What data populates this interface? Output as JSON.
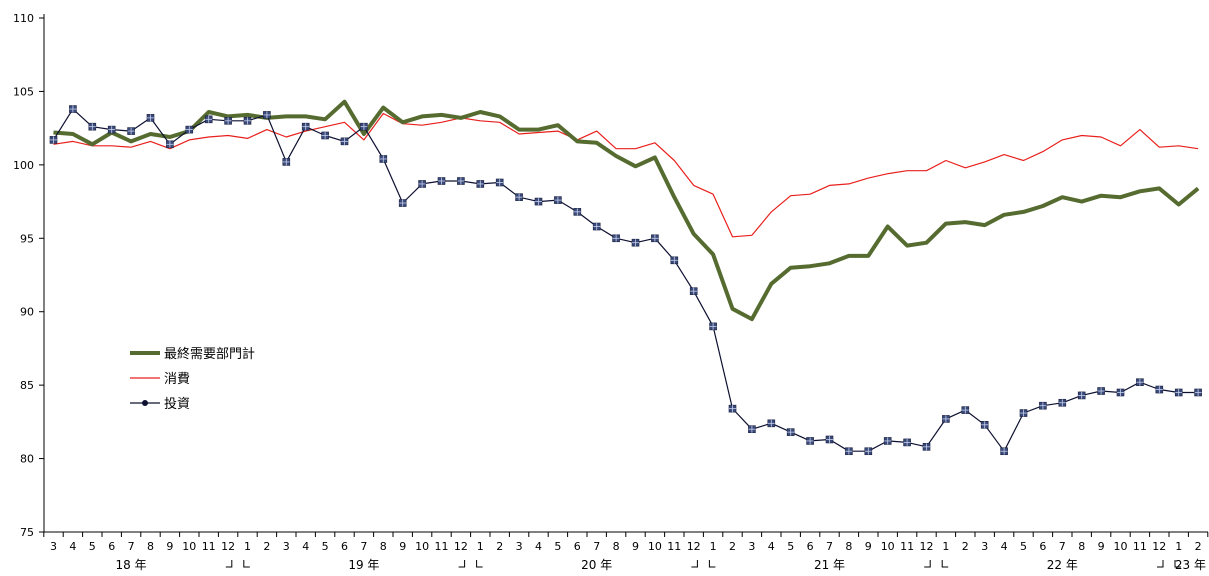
{
  "chart_data": {
    "type": "line",
    "title": "",
    "xlabel": "",
    "ylabel": "",
    "ylim": [
      75,
      110
    ],
    "yticks": [
      75,
      80,
      85,
      90,
      95,
      100,
      105,
      110
    ],
    "grid": false,
    "legend_position": "left",
    "categories": [
      "3",
      "4",
      "5",
      "6",
      "7",
      "8",
      "9",
      "10",
      "11",
      "12",
      "1",
      "2",
      "3",
      "4",
      "5",
      "6",
      "7",
      "8",
      "9",
      "10",
      "11",
      "12",
      "1",
      "2",
      "3",
      "4",
      "5",
      "6",
      "7",
      "8",
      "9",
      "10",
      "11",
      "12",
      "1",
      "2",
      "3",
      "4",
      "5",
      "6",
      "7",
      "8",
      "9",
      "10",
      "11",
      "12",
      "1",
      "2",
      "3",
      "4",
      "5",
      "6",
      "7",
      "8",
      "9",
      "10",
      "11",
      "12",
      "1",
      "2"
    ],
    "year_labels": [
      {
        "text": "18 年",
        "index": 4
      },
      {
        "text": "19 年",
        "index": 16
      },
      {
        "text": "20 年",
        "index": 28
      },
      {
        "text": "21 年",
        "index": 40
      },
      {
        "text": "22 年",
        "index": 52
      },
      {
        "text": "23 年",
        "index": 59
      }
    ],
    "year_bracket_indices": [
      9.5,
      21.5,
      33.5,
      45.5,
      57.5
    ],
    "series": [
      {
        "name": "最終需要部門計",
        "color": "#556b2f",
        "values": [
          102.2,
          102.1,
          101.4,
          102.2,
          101.6,
          102.1,
          101.9,
          102.3,
          103.6,
          103.3,
          103.4,
          103.2,
          103.3,
          103.3,
          103.1,
          104.3,
          102.1,
          103.9,
          102.9,
          103.3,
          103.4,
          103.2,
          103.6,
          103.3,
          102.4,
          102.4,
          102.7,
          101.6,
          101.5,
          100.6,
          99.9,
          100.5,
          97.8,
          95.3,
          93.9,
          90.2,
          89.5,
          91.9,
          93.0,
          93.1,
          93.3,
          93.8,
          93.8,
          95.8,
          94.5,
          94.7,
          96.0,
          96.1,
          95.9,
          96.6,
          96.8,
          97.2,
          97.8,
          97.5,
          97.9,
          97.8,
          98.2,
          98.4,
          97.3,
          98.4
        ]
      },
      {
        "name": "消費",
        "color": "#e8201c",
        "values": [
          101.4,
          101.6,
          101.3,
          101.3,
          101.2,
          101.6,
          101.1,
          101.7,
          101.9,
          102.0,
          101.8,
          102.4,
          101.9,
          102.3,
          102.6,
          102.9,
          101.7,
          103.5,
          102.8,
          102.7,
          102.9,
          103.2,
          103.0,
          102.9,
          102.1,
          102.2,
          102.3,
          101.7,
          102.3,
          101.1,
          101.1,
          101.5,
          100.3,
          98.6,
          98.0,
          95.1,
          95.2,
          96.8,
          97.9,
          98.0,
          98.6,
          98.7,
          99.1,
          99.4,
          99.6,
          99.6,
          100.3,
          99.8,
          100.2,
          100.7,
          100.3,
          100.9,
          101.7,
          102.0,
          101.9,
          101.3,
          102.4,
          101.2,
          101.3,
          101.1
        ]
      },
      {
        "name": "投資",
        "color": "#0d1030",
        "values": [
          101.7,
          103.8,
          102.6,
          102.4,
          102.3,
          103.2,
          101.4,
          102.4,
          103.1,
          103.0,
          103.0,
          103.4,
          100.2,
          102.6,
          102.0,
          101.6,
          102.6,
          100.4,
          97.4,
          98.7,
          98.9,
          98.9,
          98.7,
          98.8,
          97.8,
          97.5,
          97.6,
          96.8,
          95.8,
          95.0,
          94.7,
          95.0,
          93.5,
          91.4,
          89.0,
          83.4,
          82.0,
          82.4,
          81.8,
          81.2,
          81.3,
          80.5,
          80.5,
          81.2,
          81.1,
          80.8,
          82.7,
          83.3,
          82.3,
          80.5,
          83.1,
          83.6,
          83.8,
          84.3,
          84.6,
          84.5,
          85.2,
          84.7,
          84.5,
          84.5
        ]
      }
    ]
  }
}
